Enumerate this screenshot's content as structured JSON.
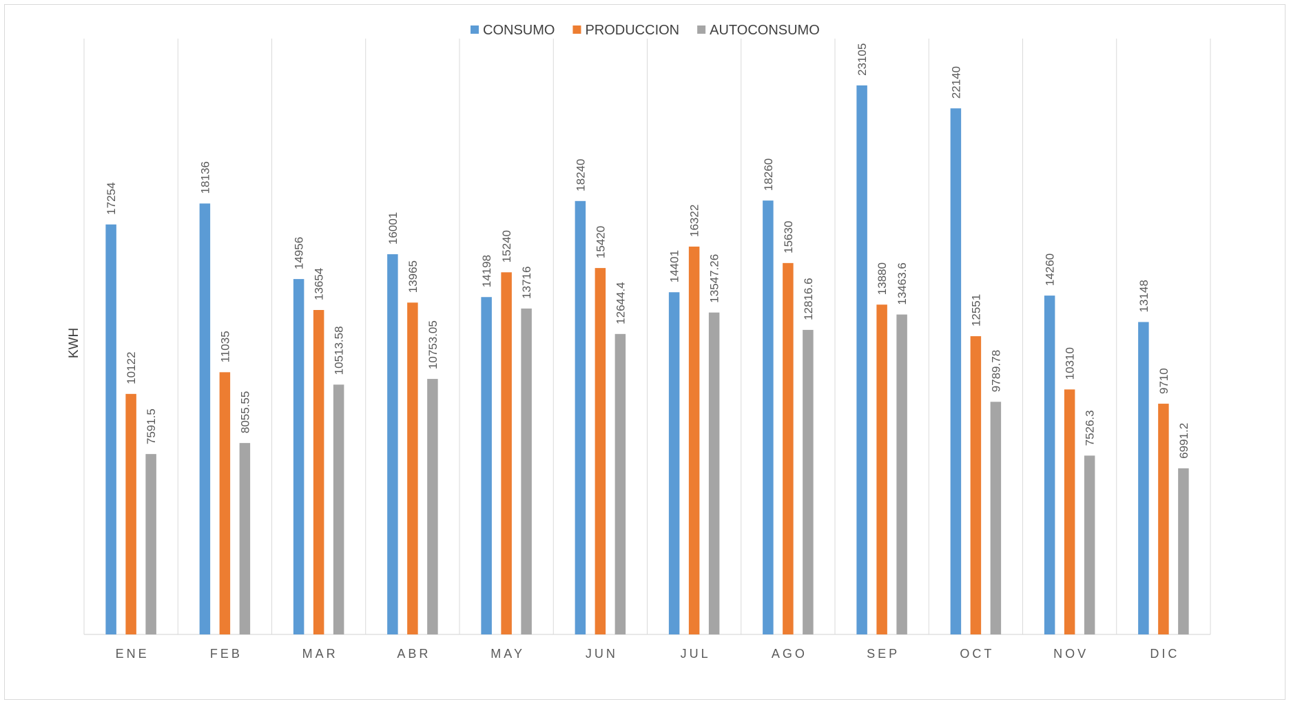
{
  "chart_data": {
    "type": "bar",
    "title": "",
    "xlabel": "",
    "ylabel": "KWH",
    "categories": [
      "ENE",
      "FEB",
      "MAR",
      "ABR",
      "MAY",
      "JUN",
      "JUL",
      "AGO",
      "SEP",
      "OCT",
      "NOV",
      "DIC"
    ],
    "series": [
      {
        "name": "CONSUMO",
        "color": "#5b9bd5",
        "values": [
          17254,
          18136,
          14956,
          16001,
          14198,
          18240,
          14401,
          18260,
          23105,
          22140,
          14260,
          13148
        ],
        "labels": [
          "17254",
          "18136",
          "14956",
          "16001",
          "14198",
          "18240",
          "14401",
          "18260",
          "23105",
          "22140",
          "14260",
          "13148"
        ]
      },
      {
        "name": "PRODUCCION",
        "color": "#ed7d31",
        "values": [
          10122,
          11035,
          13654,
          13965,
          15240,
          15420,
          16322,
          15630,
          13880,
          12551,
          10310,
          9710
        ],
        "labels": [
          "10122",
          "11035",
          "13654",
          "13965",
          "15240",
          "15420",
          "16322",
          "15630",
          "13880",
          "12551",
          "10310",
          "9710"
        ]
      },
      {
        "name": "AUTOCONSUMO",
        "color": "#a5a5a5",
        "values": [
          7591.5,
          8055.55,
          10513.58,
          10753.05,
          13716,
          12644.4,
          13547.26,
          12816.6,
          13463.6,
          9789.78,
          7526.3,
          6991.2
        ],
        "labels": [
          "7591.5",
          "8055.55",
          "10513.58",
          "10753.05",
          "13716",
          "12644.4",
          "13547.26",
          "12816.6",
          "13463.6",
          "9789.78",
          "7526.3",
          "6991.2"
        ]
      }
    ],
    "ylim": [
      0,
      23105
    ],
    "grid": "vertical category separators",
    "legend_position": "top-center",
    "data_labels": "vertical above bars"
  }
}
